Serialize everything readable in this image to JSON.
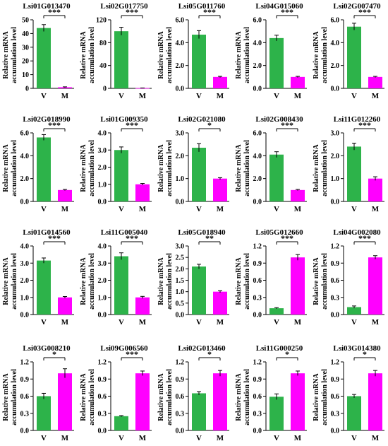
{
  "figure": {
    "ylabel_line1": "Relative mRNA",
    "ylabel_line2": "accumulation level",
    "colors": {
      "V": "#2db34a",
      "M": "#ff00ff"
    }
  },
  "chart_data": [
    {
      "type": "bar",
      "title": "Lsi01G013470",
      "categories": [
        "V",
        "M"
      ],
      "values": [
        44,
        0.8
      ],
      "errors": [
        2.5,
        0.3
      ],
      "ylim": [
        0,
        50
      ],
      "yticks": [
        "0",
        "10",
        "20",
        "30",
        "40",
        "50"
      ],
      "significance": "***"
    },
    {
      "type": "bar",
      "title": "Lsi02G017750",
      "categories": [
        "V",
        "M"
      ],
      "values": [
        100,
        0.5
      ],
      "errors": [
        7,
        0.2
      ],
      "ylim": [
        0,
        120
      ],
      "yticks": [
        "0",
        "40",
        "80",
        "120"
      ],
      "significance": "***"
    },
    {
      "type": "bar",
      "title": "Lsi05G011760",
      "categories": [
        "V",
        "M"
      ],
      "values": [
        4.7,
        1.0
      ],
      "errors": [
        0.35,
        0.05
      ],
      "ylim": [
        0,
        6
      ],
      "yticks": [
        "0.0",
        "2.0",
        "4.0",
        "6.0"
      ],
      "significance": "***"
    },
    {
      "type": "bar",
      "title": "Lsi04G015060",
      "categories": [
        "V",
        "M"
      ],
      "values": [
        4.4,
        1.0
      ],
      "errors": [
        0.25,
        0.05
      ],
      "ylim": [
        0,
        6
      ],
      "yticks": [
        "0.0",
        "2.0",
        "4.0",
        "6.0"
      ],
      "significance": "***"
    },
    {
      "type": "bar",
      "title": "Lsi02G007470",
      "categories": [
        "V",
        "M"
      ],
      "values": [
        5.4,
        1.0
      ],
      "errors": [
        0.3,
        0.05
      ],
      "ylim": [
        0,
        6
      ],
      "yticks": [
        "0.0",
        "2.0",
        "4.0",
        "6.0"
      ],
      "significance": "***"
    },
    {
      "type": "bar",
      "title": "Lsi02G018990",
      "categories": [
        "V",
        "M"
      ],
      "values": [
        5.6,
        1.0
      ],
      "errors": [
        0.25,
        0.05
      ],
      "ylim": [
        0,
        6
      ],
      "yticks": [
        "0.0",
        "2.0",
        "4.0",
        "6.0"
      ],
      "significance": "***"
    },
    {
      "type": "bar",
      "title": "Lsi01G009350",
      "categories": [
        "V",
        "M"
      ],
      "values": [
        3.0,
        1.0
      ],
      "errors": [
        0.18,
        0.05
      ],
      "ylim": [
        0,
        4
      ],
      "yticks": [
        "0.0",
        "1.0",
        "2.0",
        "3.0",
        "4.0"
      ],
      "significance": "***"
    },
    {
      "type": "bar",
      "title": "Lsi02G021080",
      "categories": [
        "V",
        "M"
      ],
      "values": [
        2.35,
        1.0
      ],
      "errors": [
        0.18,
        0.04
      ],
      "ylim": [
        0,
        3
      ],
      "yticks": [
        "0.0",
        "1.0",
        "2.0",
        "3.0"
      ],
      "significance": "*"
    },
    {
      "type": "bar",
      "title": "Lsi02G008430",
      "categories": [
        "V",
        "M"
      ],
      "values": [
        4.1,
        1.0
      ],
      "errors": [
        0.25,
        0.05
      ],
      "ylim": [
        0,
        6
      ],
      "yticks": [
        "0.0",
        "2.0",
        "4.0",
        "6.0"
      ],
      "significance": "***"
    },
    {
      "type": "bar",
      "title": "Lsi11G012260",
      "categories": [
        "V",
        "M"
      ],
      "values": [
        2.4,
        1.0
      ],
      "errors": [
        0.15,
        0.08
      ],
      "ylim": [
        0,
        3
      ],
      "yticks": [
        "0.0",
        "1.0",
        "2.0",
        "3.0"
      ],
      "significance": "***"
    },
    {
      "type": "bar",
      "title": "Lsi01G014560",
      "categories": [
        "V",
        "M"
      ],
      "values": [
        3.15,
        1.0
      ],
      "errors": [
        0.15,
        0.05
      ],
      "ylim": [
        0,
        4
      ],
      "yticks": [
        "0.0",
        "1.0",
        "2.0",
        "3.0",
        "4.0"
      ],
      "significance": "***"
    },
    {
      "type": "bar",
      "title": "Lsi11G005040",
      "categories": [
        "V",
        "M"
      ],
      "values": [
        3.4,
        1.0
      ],
      "errors": [
        0.2,
        0.06
      ],
      "ylim": [
        0,
        4
      ],
      "yticks": [
        "0.0",
        "1.0",
        "2.0",
        "3.0",
        "4.0"
      ],
      "significance": "***"
    },
    {
      "type": "bar",
      "title": "Lsi05G018940",
      "categories": [
        "V",
        "M"
      ],
      "values": [
        2.1,
        1.0
      ],
      "errors": [
        0.1,
        0.04
      ],
      "ylim": [
        0,
        3
      ],
      "yticks": [
        "0.0",
        "0.5",
        "1.0",
        "1.5",
        "2.0",
        "2.5",
        "3.0"
      ],
      "significance": "**"
    },
    {
      "type": "bar",
      "title": "Lsi05G012660",
      "categories": [
        "V",
        "M"
      ],
      "values": [
        0.11,
        1.0
      ],
      "errors": [
        0.01,
        0.05
      ],
      "ylim": [
        0,
        1.2
      ],
      "yticks": [
        "0.0",
        "0.3",
        "0.6",
        "0.9",
        "1.2"
      ],
      "significance": "***"
    },
    {
      "type": "bar",
      "title": "Lsi04G002080",
      "categories": [
        "V",
        "M"
      ],
      "values": [
        0.13,
        1.0
      ],
      "errors": [
        0.02,
        0.03
      ],
      "ylim": [
        0,
        1.2
      ],
      "yticks": [
        "0.0",
        "0.3",
        "0.6",
        "0.9",
        "1.2"
      ],
      "significance": "***"
    },
    {
      "type": "bar",
      "title": "Lsi03G008210",
      "categories": [
        "V",
        "M"
      ],
      "values": [
        0.6,
        1.0
      ],
      "errors": [
        0.05,
        0.08
      ],
      "ylim": [
        0,
        1.2
      ],
      "yticks": [
        "0.0",
        "0.3",
        "0.6",
        "0.9",
        "1.2"
      ],
      "significance": "*"
    },
    {
      "type": "bar",
      "title": "Lsi09G006560",
      "categories": [
        "V",
        "M"
      ],
      "values": [
        0.25,
        1.0
      ],
      "errors": [
        0.01,
        0.04
      ],
      "ylim": [
        0,
        1.2
      ],
      "yticks": [
        "0.0",
        "0.3",
        "0.6",
        "0.9",
        "1.2"
      ],
      "significance": "***"
    },
    {
      "type": "bar",
      "title": "Lsi02G013460",
      "categories": [
        "V",
        "M"
      ],
      "values": [
        0.65,
        1.0
      ],
      "errors": [
        0.03,
        0.05
      ],
      "ylim": [
        0,
        1.2
      ],
      "yticks": [
        "0.0",
        "0.3",
        "0.6",
        "0.9",
        "1.2"
      ],
      "significance": "*"
    },
    {
      "type": "bar",
      "title": "Lsi11G000250",
      "categories": [
        "V",
        "M"
      ],
      "values": [
        0.59,
        1.0
      ],
      "errors": [
        0.05,
        0.04
      ],
      "ylim": [
        0,
        1.2
      ],
      "yticks": [
        "0.0",
        "0.3",
        "0.6",
        "0.9",
        "1.2"
      ],
      "significance": "*"
    },
    {
      "type": "bar",
      "title": "Lsi03G014380",
      "categories": [
        "V",
        "M"
      ],
      "values": [
        0.6,
        1.0
      ],
      "errors": [
        0.03,
        0.05
      ],
      "ylim": [
        0,
        1.2
      ],
      "yticks": [
        "0.0",
        "0.3",
        "0.6",
        "0.9",
        "1.2"
      ],
      "significance": "*"
    }
  ]
}
